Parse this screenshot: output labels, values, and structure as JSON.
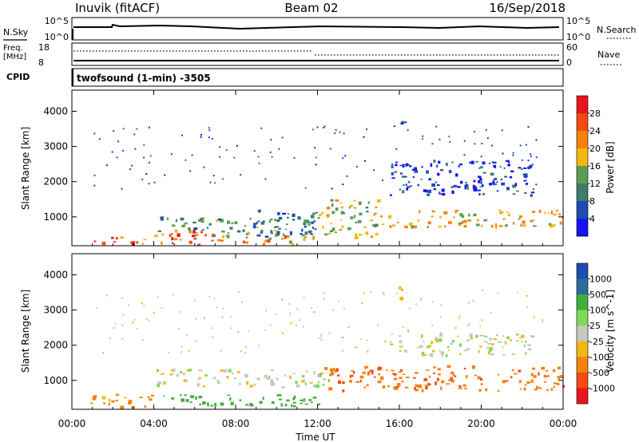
{
  "header": {
    "station": "Inuvik (fitACF)",
    "beam": "Beam 02",
    "date": "16/Sep/2018"
  },
  "summary_panels": {
    "nsky": {
      "label": "N.Sky",
      "left_ticks": [
        "10^5",
        "10^0"
      ],
      "right_ticks": [
        "10^5",
        "10^0"
      ],
      "right_label": "N.Search"
    },
    "freq": {
      "label_line1": "Freq.",
      "label_line2": "[MHz]",
      "left_ticks": [
        "18",
        "8"
      ],
      "right_ticks": [
        "60",
        "0"
      ],
      "right_label": "Nave"
    },
    "cpid": {
      "label": "CPID",
      "text": "twofsound (1-min) -3505"
    }
  },
  "chart_data": [
    {
      "type": "heatmap",
      "name": "power",
      "ylabel": "Slant Range [km]",
      "xlabel": "",
      "x_range": [
        0,
        24
      ],
      "ylim": [
        180,
        4600
      ],
      "y_ticks": [
        1000,
        2000,
        3000,
        4000
      ],
      "x_ticks": [
        "00:00",
        "04:00",
        "08:00",
        "12:00",
        "16:00",
        "20:00",
        "00:00"
      ],
      "colorbar": {
        "label": "Power [dB]",
        "ticks": [
          "28",
          "24",
          "20",
          "16",
          "12",
          "8",
          "4"
        ],
        "colors": [
          "#e8141c",
          "#f34a14",
          "#f5820c",
          "#f3b80f",
          "#5a9e54",
          "#3f7b6e",
          "#1c4db3",
          "#1414f0"
        ]
      },
      "regions": [
        {
          "t0": 0.7,
          "t1": 4.0,
          "r0": 200,
          "r1": 420,
          "value": 26
        },
        {
          "t0": 4.0,
          "t1": 7.5,
          "r0": 200,
          "r1": 600,
          "value": 28
        },
        {
          "t0": 4.0,
          "t1": 11.5,
          "r0": 400,
          "r1": 1000,
          "value": 14
        },
        {
          "t0": 7.5,
          "t1": 11.8,
          "r0": 200,
          "r1": 450,
          "value": 22
        },
        {
          "t0": 9.0,
          "t1": 12.0,
          "r0": 500,
          "r1": 1200,
          "value": 10
        },
        {
          "t0": 12.0,
          "t1": 15.0,
          "r0": 400,
          "r1": 1500,
          "value": 18
        },
        {
          "t0": 15.0,
          "t1": 24.0,
          "r0": 700,
          "r1": 1200,
          "value": 20
        },
        {
          "t0": 15.5,
          "t1": 22.5,
          "r0": 1600,
          "r1": 2600,
          "value": 6
        },
        {
          "t0": 15.8,
          "t1": 16.2,
          "r0": 3300,
          "r1": 3800,
          "value": 6
        }
      ]
    },
    {
      "type": "heatmap",
      "name": "velocity",
      "ylabel": "Slant Range [km]",
      "xlabel": "Time UT",
      "x_range": [
        0,
        24
      ],
      "ylim": [
        180,
        4600
      ],
      "y_ticks": [
        1000,
        2000,
        3000,
        4000
      ],
      "x_ticks": [
        "00:00",
        "04:00",
        "08:00",
        "12:00",
        "16:00",
        "20:00",
        "00:00"
      ],
      "colorbar": {
        "label": "Velocity [m s^-1]",
        "ticks": [
          "1000",
          "500",
          "100",
          "25",
          "-25",
          "-100",
          "-500",
          "-1000"
        ],
        "colors": [
          "#1c4db3",
          "#2f6a9d",
          "#3fae3a",
          "#7ed957",
          "#c8c8c0",
          "#f3b80f",
          "#f5820c",
          "#f34a14",
          "#e8141c"
        ]
      },
      "regions": [
        {
          "t0": 0.7,
          "t1": 4.0,
          "r0": 200,
          "r1": 600,
          "value": -150
        },
        {
          "t0": 4.0,
          "t1": 12.5,
          "r0": 800,
          "r1": 1300,
          "value": 0
        },
        {
          "t0": 4.0,
          "t1": 12.0,
          "r0": 250,
          "r1": 600,
          "value": 200
        },
        {
          "t0": 12.0,
          "t1": 24.0,
          "r0": 700,
          "r1": 1400,
          "value": -400
        },
        {
          "t0": 15.5,
          "t1": 22.5,
          "r0": 1700,
          "r1": 2300,
          "value": 0
        },
        {
          "t0": 15.8,
          "t1": 16.2,
          "r0": 3300,
          "r1": 3800,
          "value": -100
        }
      ]
    }
  ]
}
